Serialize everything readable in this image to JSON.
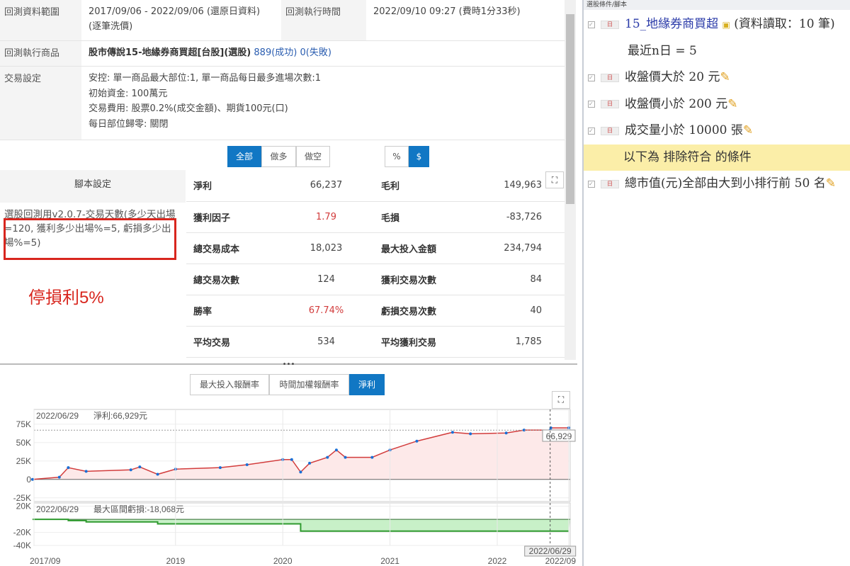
{
  "info": {
    "range_label": "回測資料範圍",
    "range_value": "2017/09/06 - 2022/09/06 (還原日資料) (逐筆洗價)",
    "time_label": "回測執行時間",
    "time_value": "2022/09/10 09:27 (費時1分33秒)",
    "product_label": "回測執行商品",
    "product_name": "股市傳說15-地緣券商買超[台股](選股)",
    "success": "889(成功)",
    "fail": "0(失敗)",
    "trade_label": "交易設定",
    "trade_lines": [
      "安控: 單一商品最大部位:1, 單一商品每日最多進場次數:1",
      "初始資金: 100萬元",
      "交易費用: 股票0.2%(成交金額)、期貨100元(口)",
      "每日部位歸零: 關閉"
    ]
  },
  "filters": {
    "dir": [
      "全部",
      "做多",
      "做空"
    ],
    "unit": [
      "%",
      "$"
    ]
  },
  "script": {
    "header": "腳本設定",
    "text": "選股回測用v2.0.7-交易天數(多少天出場=120, 獲利多少出場%=5, 虧損多少出場%=5)",
    "annotation": "停損利5%"
  },
  "stats": [
    [
      "淨利",
      "66,237",
      "毛利",
      "149,963"
    ],
    [
      "獲利因子",
      "1.79",
      "毛損",
      "-83,726"
    ],
    [
      "總交易成本",
      "18,023",
      "最大投入金額",
      "234,794"
    ],
    [
      "總交易次數",
      "124",
      "獲利交易次數",
      "84"
    ],
    [
      "勝率",
      "67.74%",
      "虧損交易次數",
      "40"
    ],
    [
      "平均交易",
      "534",
      "平均獲利交易",
      "1,785"
    ]
  ],
  "chart_tabs": [
    "最大投入報酬率",
    "時間加權報酬率",
    "淨利"
  ],
  "colors": {
    "accent": "#1177c4",
    "profit_line": "#d23c3c",
    "drawdown": "#2e9a2e",
    "annotation": "#d8261e"
  },
  "chart_data": [
    {
      "type": "line",
      "title": "",
      "date_label": "2022/06/29",
      "readout": "淨利:66,929元",
      "value_label": "66,929",
      "yticks": [
        "75K",
        "50K",
        "25K",
        "0",
        "-25K"
      ],
      "ylim": [
        -30000,
        95000
      ],
      "x": [
        "2017/09",
        "2017/12",
        "2018/01",
        "2018/03",
        "2018/08",
        "2018/09",
        "2018/11",
        "2019/01",
        "2019/06",
        "2019/09",
        "2020/01",
        "2020/02",
        "2020/03",
        "2020/04",
        "2020/06",
        "2020/07",
        "2020/08",
        "2020/11",
        "2021/01",
        "2021/04",
        "2021/08",
        "2021/10",
        "2022/02",
        "2022/04",
        "2022/06/29",
        "2022/07",
        "2022/09"
      ],
      "y": [
        0,
        3000,
        16000,
        11000,
        13000,
        17000,
        7000,
        14000,
        16000,
        20000,
        27000,
        27000,
        10000,
        22000,
        30000,
        40000,
        30000,
        30000,
        40000,
        52000,
        64000,
        62000,
        63000,
        67000,
        66929,
        70000,
        70000
      ]
    },
    {
      "type": "area",
      "date_label": "2022/06/29",
      "readout": "最大區間虧損:-18,068元",
      "yticks": [
        "20K",
        "-20K",
        "-40K"
      ],
      "ylim": [
        -40000,
        25000
      ],
      "x": [
        "2017/09",
        "2018/01",
        "2018/03",
        "2018/11",
        "2020/03",
        "2022/09"
      ],
      "y": [
        0,
        -2000,
        -4000,
        -7000,
        -18068,
        -18068
      ]
    },
    {
      "xticks": [
        "2017/09",
        "2019",
        "2020",
        "2021",
        "2022",
        "2022/09"
      ],
      "cursor_label": "2022/06/29"
    }
  ],
  "right": {
    "header": "選股條件/腳本",
    "items": [
      {
        "text": "15_地緣券商買超",
        "extra": "(資料讀取：10 筆)",
        "check": true,
        "link": true
      },
      {
        "text": "最近n日 = 5",
        "sub": true
      },
      {
        "text": "收盤價大於 20 元",
        "check": true,
        "pen": true
      },
      {
        "text": "收盤價小於 200 元",
        "check": true,
        "pen": true
      },
      {
        "text": "成交量小於 10000 張",
        "check": true,
        "pen": true
      },
      {
        "text": "以下為 排除符合 的條件",
        "highlight": true
      },
      {
        "text": "總市值(元)全部由大到小排行前 50 名",
        "check": true,
        "pen": true
      }
    ]
  }
}
